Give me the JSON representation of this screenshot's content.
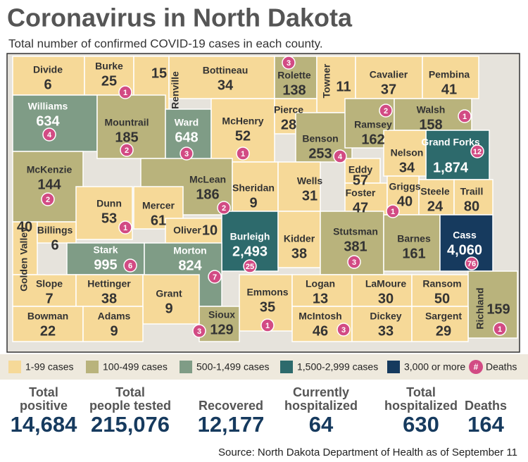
{
  "header": {
    "title": "Coronavirus in North Dakota",
    "subtitle": "Total number of confirmed COVID-19 cases in each county."
  },
  "map": {
    "counties": [
      {
        "name": "Divide",
        "cases": "6",
        "color": "#f6d998"
      },
      {
        "name": "Burke",
        "cases": "25",
        "deaths": "1",
        "color": "#f6d998"
      },
      {
        "name": "Renville",
        "cases": "15",
        "color": "#f6d998"
      },
      {
        "name": "Bottineau",
        "cases": "34",
        "color": "#f6d998"
      },
      {
        "name": "Rolette",
        "cases": "138",
        "deaths": "3",
        "color": "#b9b37c"
      },
      {
        "name": "Towner",
        "cases": "11",
        "color": "#f6d998"
      },
      {
        "name": "Cavalier",
        "cases": "37",
        "color": "#f6d998"
      },
      {
        "name": "Pembina",
        "cases": "41",
        "color": "#f6d998"
      },
      {
        "name": "Williams",
        "cases": "634",
        "deaths": "4",
        "color": "#7f9c86"
      },
      {
        "name": "Mountrail",
        "cases": "185",
        "deaths": "2",
        "color": "#b9b37c"
      },
      {
        "name": "Ward",
        "cases": "648",
        "deaths": "3",
        "color": "#7f9c86"
      },
      {
        "name": "McHenry",
        "cases": "52",
        "deaths": "1",
        "color": "#f6d998"
      },
      {
        "name": "Pierce",
        "cases": "28",
        "color": "#f6d998"
      },
      {
        "name": "Benson",
        "cases": "253",
        "deaths": "4",
        "color": "#b9b37c"
      },
      {
        "name": "Ramsey",
        "cases": "162",
        "deaths": "2",
        "color": "#b9b37c"
      },
      {
        "name": "Walsh",
        "cases": "158",
        "deaths": "1",
        "color": "#b9b37c"
      },
      {
        "name": "Grand Forks",
        "cases": "1,874",
        "deaths": "12",
        "color": "#2d6a6c"
      },
      {
        "name": "Nelson",
        "cases": "34",
        "color": "#f6d998"
      },
      {
        "name": "McKenzie",
        "cases": "144",
        "deaths": "2",
        "color": "#b9b37c"
      },
      {
        "name": "McLean",
        "cases": "186",
        "deaths": "2",
        "color": "#b9b37c"
      },
      {
        "name": "Sheridan",
        "cases": "9",
        "color": "#f6d998"
      },
      {
        "name": "Wells",
        "cases": "31",
        "color": "#f6d998"
      },
      {
        "name": "Eddy",
        "cases": "57",
        "color": "#f6d998"
      },
      {
        "name": "Foster",
        "cases": "47",
        "color": "#f6d998"
      },
      {
        "name": "Griggs",
        "cases": "40",
        "deaths": "1",
        "color": "#f6d998"
      },
      {
        "name": "Steele",
        "cases": "24",
        "color": "#f6d998"
      },
      {
        "name": "Traill",
        "cases": "80",
        "color": "#f6d998"
      },
      {
        "name": "Dunn",
        "cases": "53",
        "deaths": "1",
        "color": "#f6d998"
      },
      {
        "name": "Mercer",
        "cases": "61",
        "color": "#f6d998"
      },
      {
        "name": "Oliver",
        "cases": "10",
        "color": "#f6d998"
      },
      {
        "name": "Burleigh",
        "cases": "2,493",
        "deaths": "25",
        "color": "#2d6a6c"
      },
      {
        "name": "Kidder",
        "cases": "38",
        "color": "#f6d998"
      },
      {
        "name": "Stutsman",
        "cases": "381",
        "deaths": "3",
        "color": "#b9b37c"
      },
      {
        "name": "Barnes",
        "cases": "161",
        "color": "#b9b37c"
      },
      {
        "name": "Cass",
        "cases": "4,060",
        "deaths": "76",
        "color": "#163a5e"
      },
      {
        "name": "Golden Valley",
        "cases": "40",
        "color": "#f6d998"
      },
      {
        "name": "Billings",
        "cases": "6",
        "color": "#f6d998"
      },
      {
        "name": "Stark",
        "cases": "995",
        "deaths": "6",
        "color": "#7f9c86"
      },
      {
        "name": "Morton",
        "cases": "824",
        "deaths": "7",
        "color": "#7f9c86"
      },
      {
        "name": "Slope",
        "cases": "7",
        "color": "#f6d998"
      },
      {
        "name": "Hettinger",
        "cases": "38",
        "color": "#f6d998"
      },
      {
        "name": "Grant",
        "cases": "9",
        "color": "#f6d998"
      },
      {
        "name": "Emmons",
        "cases": "35",
        "deaths": "1",
        "color": "#f6d998"
      },
      {
        "name": "Logan",
        "cases": "13",
        "color": "#f6d998"
      },
      {
        "name": "LaMoure",
        "cases": "30",
        "color": "#f6d998"
      },
      {
        "name": "Ransom",
        "cases": "50",
        "color": "#f6d998"
      },
      {
        "name": "Richland",
        "cases": "159",
        "deaths": "1",
        "color": "#b9b37c"
      },
      {
        "name": "Bowman",
        "cases": "22",
        "color": "#f6d998"
      },
      {
        "name": "Adams",
        "cases": "9",
        "color": "#f6d998"
      },
      {
        "name": "Sioux",
        "cases": "129",
        "deaths": "3",
        "color": "#b9b37c"
      },
      {
        "name": "McIntosh",
        "cases": "46",
        "deaths": "3",
        "color": "#f6d998"
      },
      {
        "name": "Dickey",
        "cases": "33",
        "color": "#f6d998"
      },
      {
        "name": "Sargent",
        "cases": "29",
        "color": "#f6d998"
      }
    ]
  },
  "legend": {
    "items": [
      {
        "label": "1-99 cases",
        "color": "#f6d998"
      },
      {
        "label": "100-499 cases",
        "color": "#b9b37c"
      },
      {
        "label": "500-1,499 cases",
        "color": "#7f9c86"
      },
      {
        "label": "1,500-2,999 cases",
        "color": "#2d6a6c"
      },
      {
        "label": "3,000 or more",
        "color": "#163a5e"
      }
    ],
    "deaths": {
      "symbol": "#",
      "label": "Deaths",
      "color": "#d24b84"
    }
  },
  "stats": [
    {
      "label": [
        "Total",
        "positive"
      ],
      "value": "14,684"
    },
    {
      "label": [
        "Total",
        "people tested"
      ],
      "value": "215,076"
    },
    {
      "label": [
        "Recovered"
      ],
      "value": "12,177"
    },
    {
      "label": [
        "Currently",
        "hospitalized"
      ],
      "value": "64"
    },
    {
      "label": [
        "Total",
        "hospitalized"
      ],
      "value": "630"
    },
    {
      "label": [
        "Deaths"
      ],
      "value": "164"
    }
  ],
  "source": "Source: North Dakota Department of Health as of September 11"
}
